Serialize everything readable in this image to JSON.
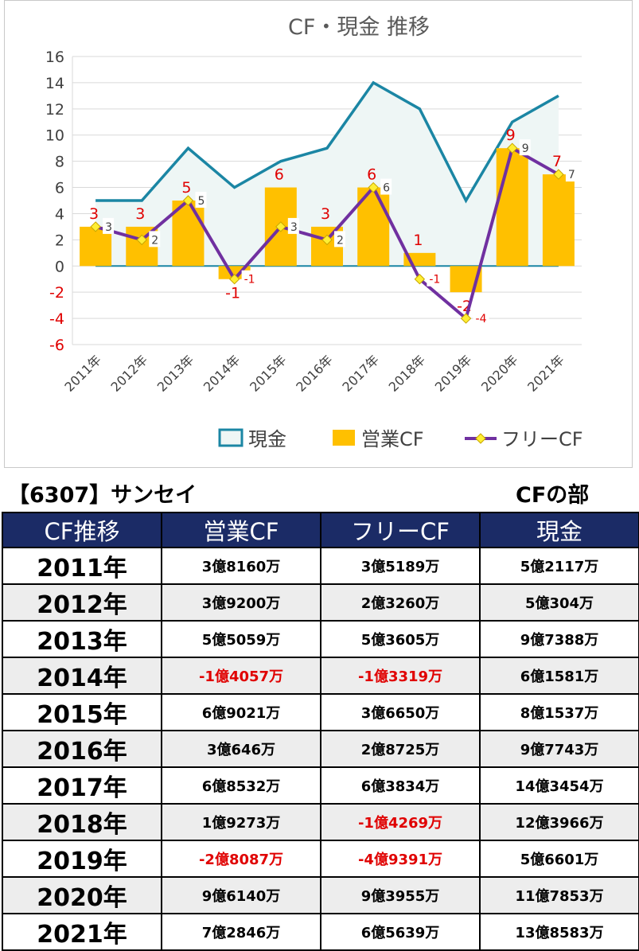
{
  "chart_data": {
    "type": "bar",
    "title": "CF・現金 推移",
    "categories": [
      "2011年",
      "2012年",
      "2013年",
      "2014年",
      "2015年",
      "2016年",
      "2017年",
      "2018年",
      "2019年",
      "2020年",
      "2021年"
    ],
    "ylim": [
      -6,
      16
    ],
    "yticks": [
      16,
      14,
      12,
      10,
      8,
      6,
      4,
      2,
      0,
      -2,
      -4,
      -6
    ],
    "grid": true,
    "legend_position": "bottom",
    "series": [
      {
        "name": "現金",
        "kind": "area-line",
        "color": "#1b86a4",
        "values": [
          5,
          5,
          9,
          6,
          8,
          9,
          14,
          12,
          5,
          11,
          13
        ]
      },
      {
        "name": "営業CF",
        "kind": "bar",
        "color": "#ffc000",
        "values": [
          3,
          3,
          5,
          -1,
          6,
          3,
          6,
          1,
          -2,
          9,
          7
        ],
        "label_color": "#e00000"
      },
      {
        "name": "フリーCF",
        "kind": "line",
        "color": "#7030a0",
        "marker_color": "#ffee33",
        "values": [
          3,
          2,
          5,
          -1,
          3,
          2,
          6,
          -1,
          -4,
          9,
          7
        ],
        "label_color": "#404040",
        "neg_label_color": "#e00000"
      }
    ]
  },
  "company": "【6307】サンセイ",
  "section_title": "CFの部",
  "table": {
    "headers": [
      "CF推移",
      "営業CF",
      "フリーCF",
      "現金"
    ],
    "rows": [
      {
        "year": "2011年",
        "op": "3億8160万",
        "free": "3億5189万",
        "cash": "5億2117万"
      },
      {
        "year": "2012年",
        "op": "3億9200万",
        "free": "2億3260万",
        "cash": "5億304万"
      },
      {
        "year": "2013年",
        "op": "5億5059万",
        "free": "5億3605万",
        "cash": "9億7388万"
      },
      {
        "year": "2014年",
        "op": "-1億4057万",
        "free": "-1億3319万",
        "cash": "6億1581万"
      },
      {
        "year": "2015年",
        "op": "6億9021万",
        "free": "3億6650万",
        "cash": "8億1537万"
      },
      {
        "year": "2016年",
        "op": "3億646万",
        "free": "2億8725万",
        "cash": "9億7743万"
      },
      {
        "year": "2017年",
        "op": "6億8532万",
        "free": "6億3834万",
        "cash": "14億3454万"
      },
      {
        "year": "2018年",
        "op": "1億9273万",
        "free": "-1億4269万",
        "cash": "12億3966万"
      },
      {
        "year": "2019年",
        "op": "-2億8087万",
        "free": "-4億9391万",
        "cash": "5億6601万"
      },
      {
        "year": "2020年",
        "op": "9億6140万",
        "free": "9億3955万",
        "cash": "11億7853万"
      },
      {
        "year": "2021年",
        "op": "7億2846万",
        "free": "6億5639万",
        "cash": "13億8583万"
      }
    ]
  }
}
